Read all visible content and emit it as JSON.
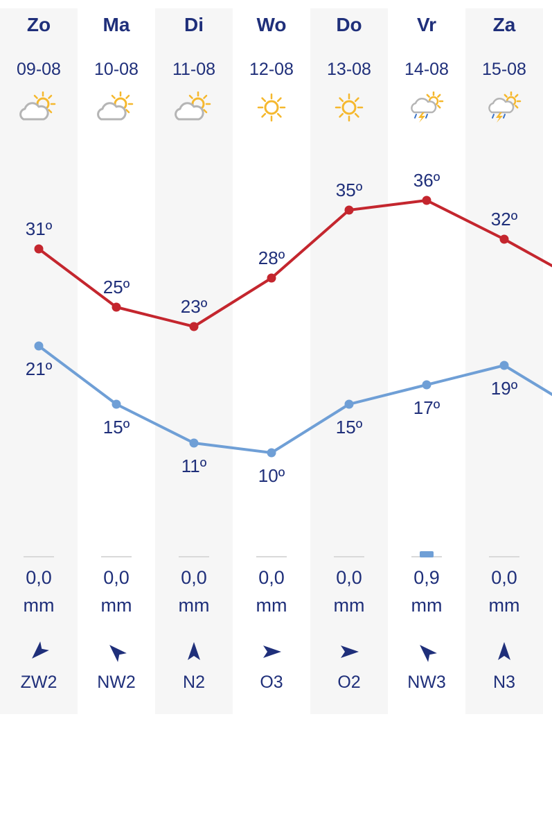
{
  "colors": {
    "max_line": "#c4262e",
    "min_line": "#6f9fd6",
    "text": "#1f2f7a",
    "stripe": "#f6f6f6",
    "sun": "#f5b82e",
    "cloud": "#b5b5b5"
  },
  "degree_suffix": "º",
  "days": [
    {
      "name": "Zo",
      "date": "09-08",
      "icon": "partly-cloudy-icon",
      "precip": "0,0",
      "precip_mm": 0.0,
      "unit": "mm",
      "wind": "ZW2",
      "wind_dir": "ZW",
      "max": 31,
      "min": 21
    },
    {
      "name": "Ma",
      "date": "10-08",
      "icon": "partly-cloudy-icon",
      "precip": "0,0",
      "precip_mm": 0.0,
      "unit": "mm",
      "wind": "NW2",
      "wind_dir": "NW",
      "max": 25,
      "min": 15
    },
    {
      "name": "Di",
      "date": "11-08",
      "icon": "partly-cloudy-icon",
      "precip": "0,0",
      "precip_mm": 0.0,
      "unit": "mm",
      "wind": "N2",
      "wind_dir": "N",
      "max": 23,
      "min": 11
    },
    {
      "name": "Wo",
      "date": "12-08",
      "icon": "sun-icon",
      "precip": "0,0",
      "precip_mm": 0.0,
      "unit": "mm",
      "wind": "O3",
      "wind_dir": "O",
      "max": 28,
      "min": 10
    },
    {
      "name": "Do",
      "date": "13-08",
      "icon": "sun-icon",
      "precip": "0,0",
      "precip_mm": 0.0,
      "unit": "mm",
      "wind": "O2",
      "wind_dir": "O",
      "max": 35,
      "min": 15
    },
    {
      "name": "Vr",
      "date": "14-08",
      "icon": "thunderstorm-icon",
      "precip": "0,9",
      "precip_mm": 0.9,
      "unit": "mm",
      "wind": "NW3",
      "wind_dir": "NW",
      "max": 36,
      "min": 17
    },
    {
      "name": "Za",
      "date": "15-08",
      "icon": "thunderstorm-icon",
      "precip": "0,0",
      "precip_mm": 0.0,
      "unit": "mm",
      "wind": "N3",
      "wind_dir": "N",
      "max": 32,
      "min": 19
    }
  ],
  "chart_data": {
    "type": "line",
    "categories": [
      "09-08",
      "10-08",
      "11-08",
      "12-08",
      "13-08",
      "14-08",
      "15-08"
    ],
    "series": [
      {
        "values": [
          31,
          25,
          23,
          28,
          35,
          36,
          32
        ],
        "color": "#c4262e"
      },
      {
        "values": [
          21,
          15,
          11,
          10,
          15,
          17,
          19
        ],
        "color": "#6f9fd6"
      }
    ],
    "ylim": [
      10,
      36
    ],
    "grid": false,
    "legend": "none"
  }
}
